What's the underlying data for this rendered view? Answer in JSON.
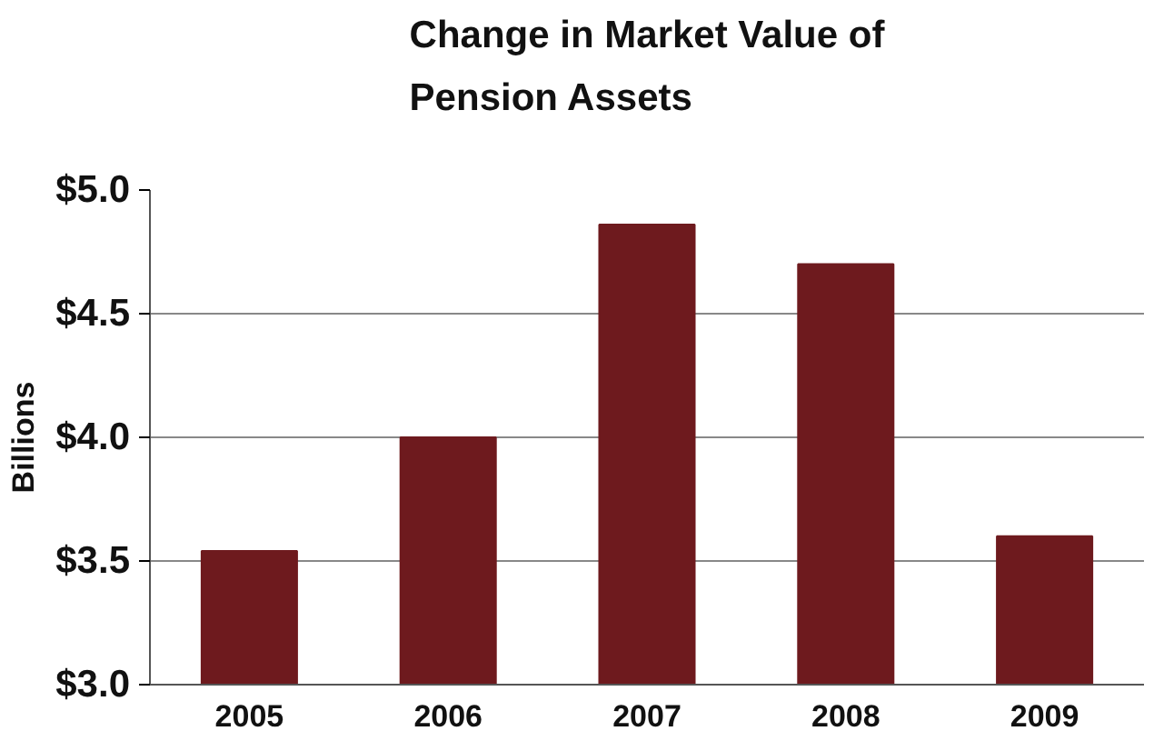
{
  "chart_data": {
    "type": "bar",
    "title": "Change in Market Value of\nPension Assets",
    "ylabel": "Billions",
    "categories": [
      "2005",
      "2006",
      "2007",
      "2008",
      "2009"
    ],
    "values": [
      3.54,
      4.0,
      4.86,
      4.7,
      3.6
    ],
    "color": "#6e1a1e",
    "ylim": [
      3.0,
      5.0
    ],
    "yticks": [
      {
        "value": 3.0,
        "label": "$3.0"
      },
      {
        "value": 3.5,
        "label": "$3.5"
      },
      {
        "value": 4.0,
        "label": "$4.0"
      },
      {
        "value": 4.5,
        "label": "$4.5"
      },
      {
        "value": 5.0,
        "label": "$5.0"
      }
    ],
    "grid": "y"
  }
}
